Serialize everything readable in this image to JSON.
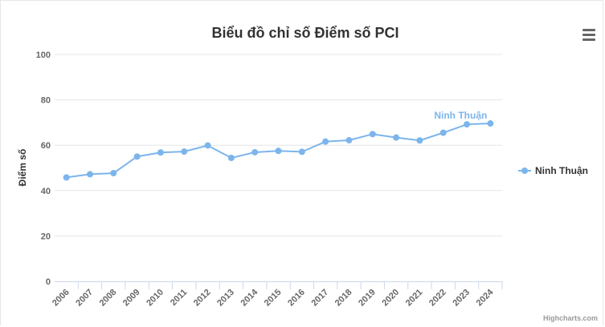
{
  "chart_data": {
    "type": "line",
    "title": "Biểu đồ chỉ số Điểm số PCI",
    "ylabel": "Điểm số",
    "xlabel": "",
    "ylim": [
      0,
      100
    ],
    "yticks": [
      0,
      20,
      40,
      60,
      80,
      100
    ],
    "grid": true,
    "legend_position": "right",
    "categories": [
      "2006",
      "2007",
      "2008",
      "2009",
      "2010",
      "2011",
      "2012",
      "2013",
      "2014",
      "2015",
      "2016",
      "2017",
      "2018",
      "2019",
      "2020",
      "2021",
      "2022",
      "2023",
      "2024"
    ],
    "series": [
      {
        "name": "Ninh Thuận",
        "color": "#7cb5ec",
        "values": [
          45.8,
          47.2,
          47.7,
          55.0,
          56.8,
          57.2,
          59.9,
          54.4,
          56.9,
          57.5,
          57.1,
          61.6,
          62.2,
          64.9,
          63.4,
          62.1,
          65.5,
          69.2,
          69.6
        ]
      }
    ]
  },
  "menu": {
    "icon": "hamburger-menu-icon"
  },
  "credits": "Highcharts.com"
}
